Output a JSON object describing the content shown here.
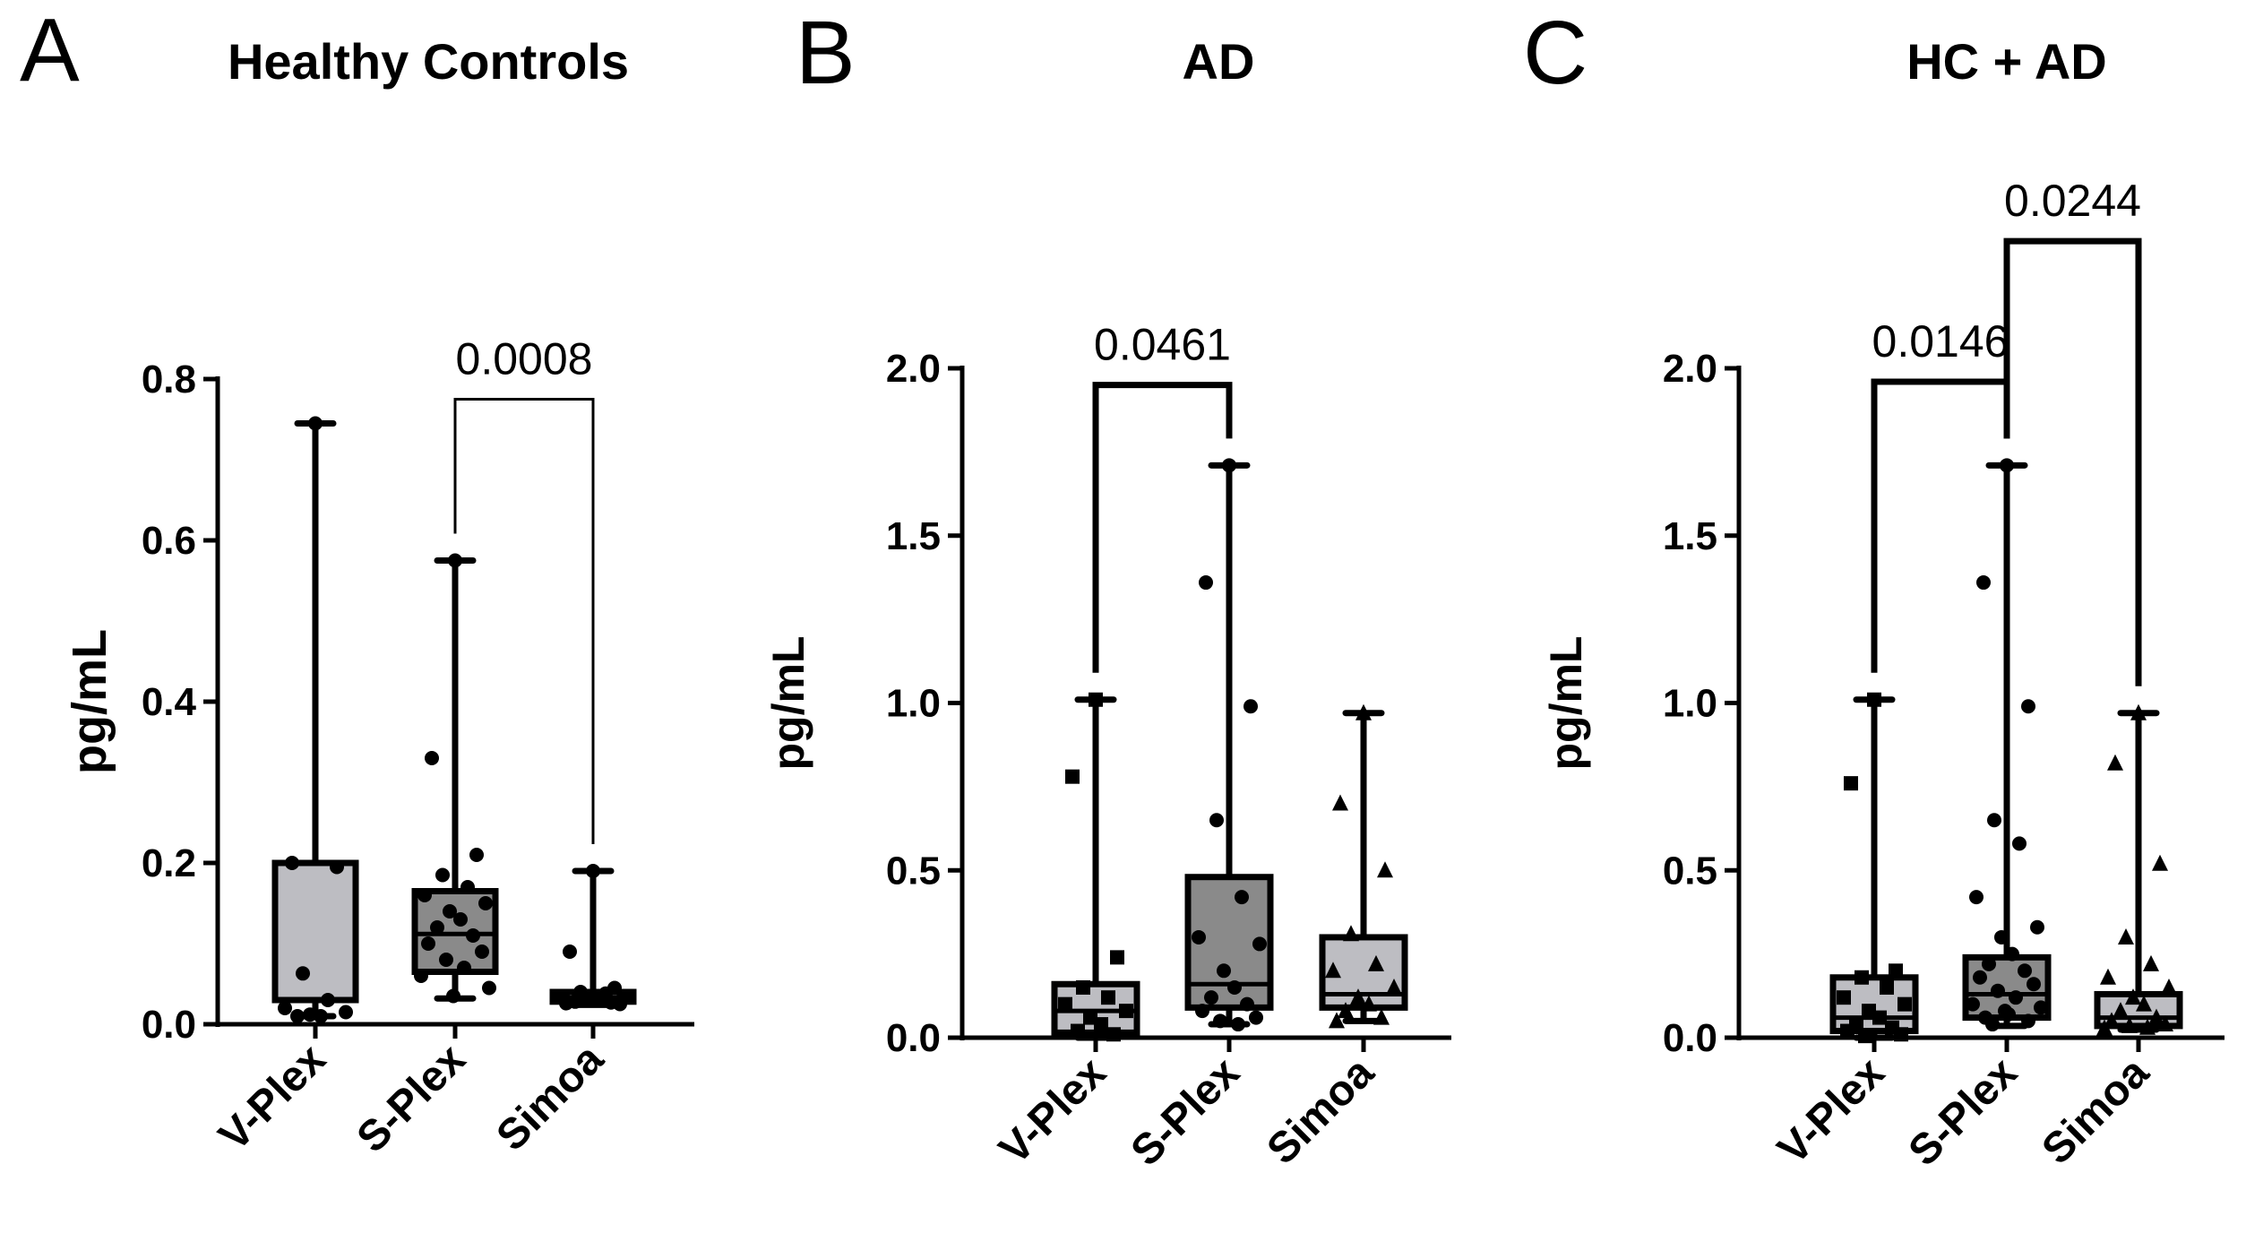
{
  "chart_data": [
    {
      "type": "box",
      "panel_label": "A",
      "title": "Healthy Controls",
      "ylabel": "pg/mL",
      "xlabel": "",
      "ylim": [
        0,
        0.8
      ],
      "yticks": [
        0,
        0.2,
        0.4,
        0.6,
        0.8
      ],
      "ytick_labels": [
        "0.0",
        "0.2",
        "0.4",
        "0.6",
        "0.8"
      ],
      "categories": [
        "V-Plex",
        "S-Plex",
        "Simoa"
      ],
      "boxes": [
        {
          "name": "V-Plex",
          "min": 0.01,
          "q1": 0.03,
          "median": 0.03,
          "q3": 0.2,
          "max": 0.745,
          "fill": "#bdbdc2",
          "marker": "circle",
          "points": [
            0.745,
            0.2,
            0.195,
            0.063,
            0.03,
            0.02,
            0.015,
            0.012,
            0.01,
            0.01
          ]
        },
        {
          "name": "S-Plex",
          "min": 0.032,
          "q1": 0.065,
          "median": 0.112,
          "q3": 0.165,
          "max": 0.575,
          "fill": "#8a8a8a",
          "marker": "circle",
          "points": [
            0.575,
            0.33,
            0.21,
            0.185,
            0.17,
            0.16,
            0.15,
            0.14,
            0.13,
            0.12,
            0.11,
            0.1,
            0.09,
            0.08,
            0.07,
            0.06,
            0.045,
            0.035
          ]
        },
        {
          "name": "Simoa",
          "min": 0.024,
          "q1": 0.028,
          "median": 0.033,
          "q3": 0.04,
          "max": 0.19,
          "fill": "#bdbdc2",
          "marker": "circle",
          "points": [
            0.19,
            0.09,
            0.045,
            0.04,
            0.038,
            0.035,
            0.033,
            0.031,
            0.03,
            0.028,
            0.027,
            0.026,
            0.025
          ]
        }
      ],
      "comparisons": [
        {
          "from": "S-Plex",
          "to": "Simoa",
          "label": "0.0008",
          "bracket_at": 0.775
        }
      ]
    },
    {
      "type": "box",
      "panel_label": "B",
      "title": "AD",
      "ylabel": "pg/mL",
      "xlabel": "",
      "ylim": [
        0,
        2.0
      ],
      "yticks": [
        0,
        0.5,
        1.0,
        1.5,
        2.0
      ],
      "ytick_labels": [
        "0.0",
        "0.5",
        "1.0",
        "1.5",
        "2.0"
      ],
      "categories": [
        "V-Plex",
        "S-Plex",
        "Simoa"
      ],
      "boxes": [
        {
          "name": "V-Plex",
          "min": 0.0,
          "q1": 0.015,
          "median": 0.08,
          "q3": 0.16,
          "max": 1.01,
          "fill": "#bdbdc2",
          "marker": "square",
          "points": [
            1.01,
            0.78,
            0.24,
            0.15,
            0.12,
            0.1,
            0.08,
            0.06,
            0.04,
            0.02,
            0.01
          ]
        },
        {
          "name": "S-Plex",
          "min": 0.04,
          "q1": 0.09,
          "median": 0.16,
          "q3": 0.48,
          "max": 1.71,
          "fill": "#8a8a8a",
          "marker": "circle",
          "points": [
            1.71,
            1.36,
            0.99,
            0.65,
            0.42,
            0.3,
            0.28,
            0.2,
            0.15,
            0.12,
            0.1,
            0.08,
            0.06,
            0.05,
            0.04
          ]
        },
        {
          "name": "Simoa",
          "min": 0.05,
          "q1": 0.09,
          "median": 0.13,
          "q3": 0.3,
          "max": 0.97,
          "fill": "#bdbdc2",
          "marker": "triangle",
          "points": [
            0.97,
            0.7,
            0.5,
            0.31,
            0.22,
            0.2,
            0.15,
            0.12,
            0.1,
            0.08,
            0.06,
            0.05
          ]
        }
      ],
      "comparisons": [
        {
          "from": "V-Plex",
          "to": "S-Plex",
          "label": "0.0461",
          "bracket_at": 1.95
        }
      ]
    },
    {
      "type": "box",
      "panel_label": "C",
      "title": "HC + AD",
      "ylabel": "pg/mL",
      "xlabel": "",
      "ylim": [
        0,
        2.0
      ],
      "yticks": [
        0,
        0.5,
        1.0,
        1.5,
        2.0
      ],
      "ytick_labels": [
        "0.0",
        "0.5",
        "1.0",
        "1.5",
        "2.0"
      ],
      "categories": [
        "V-Plex",
        "S-Plex",
        "Simoa"
      ],
      "boxes": [
        {
          "name": "V-Plex",
          "min": 0.0,
          "q1": 0.02,
          "median": 0.06,
          "q3": 0.18,
          "max": 1.01,
          "fill": "#bdbdc2",
          "marker": "square",
          "points": [
            1.01,
            0.76,
            0.2,
            0.18,
            0.15,
            0.12,
            0.1,
            0.08,
            0.06,
            0.04,
            0.03,
            0.02,
            0.01,
            0.005
          ]
        },
        {
          "name": "S-Plex",
          "min": 0.035,
          "q1": 0.06,
          "median": 0.13,
          "q3": 0.24,
          "max": 1.71,
          "fill": "#8a8a8a",
          "marker": "circle",
          "points": [
            1.71,
            1.36,
            0.99,
            0.65,
            0.58,
            0.42,
            0.33,
            0.3,
            0.25,
            0.22,
            0.2,
            0.18,
            0.16,
            0.14,
            0.12,
            0.1,
            0.09,
            0.08,
            0.07,
            0.06,
            0.05,
            0.04
          ]
        },
        {
          "name": "Simoa",
          "min": 0.024,
          "q1": 0.035,
          "median": 0.06,
          "q3": 0.13,
          "max": 0.97,
          "fill": "#bdbdc2",
          "marker": "triangle",
          "points": [
            0.97,
            0.82,
            0.52,
            0.3,
            0.22,
            0.18,
            0.15,
            0.12,
            0.1,
            0.08,
            0.06,
            0.05,
            0.04,
            0.035,
            0.03,
            0.028
          ]
        }
      ],
      "comparisons": [
        {
          "from": "V-Plex",
          "to": "S-Plex",
          "label": "0.0146",
          "bracket_at": 1.96
        },
        {
          "from": "S-Plex",
          "to": "Simoa",
          "label": "0.0244",
          "bracket_at": 2.38
        }
      ]
    }
  ]
}
